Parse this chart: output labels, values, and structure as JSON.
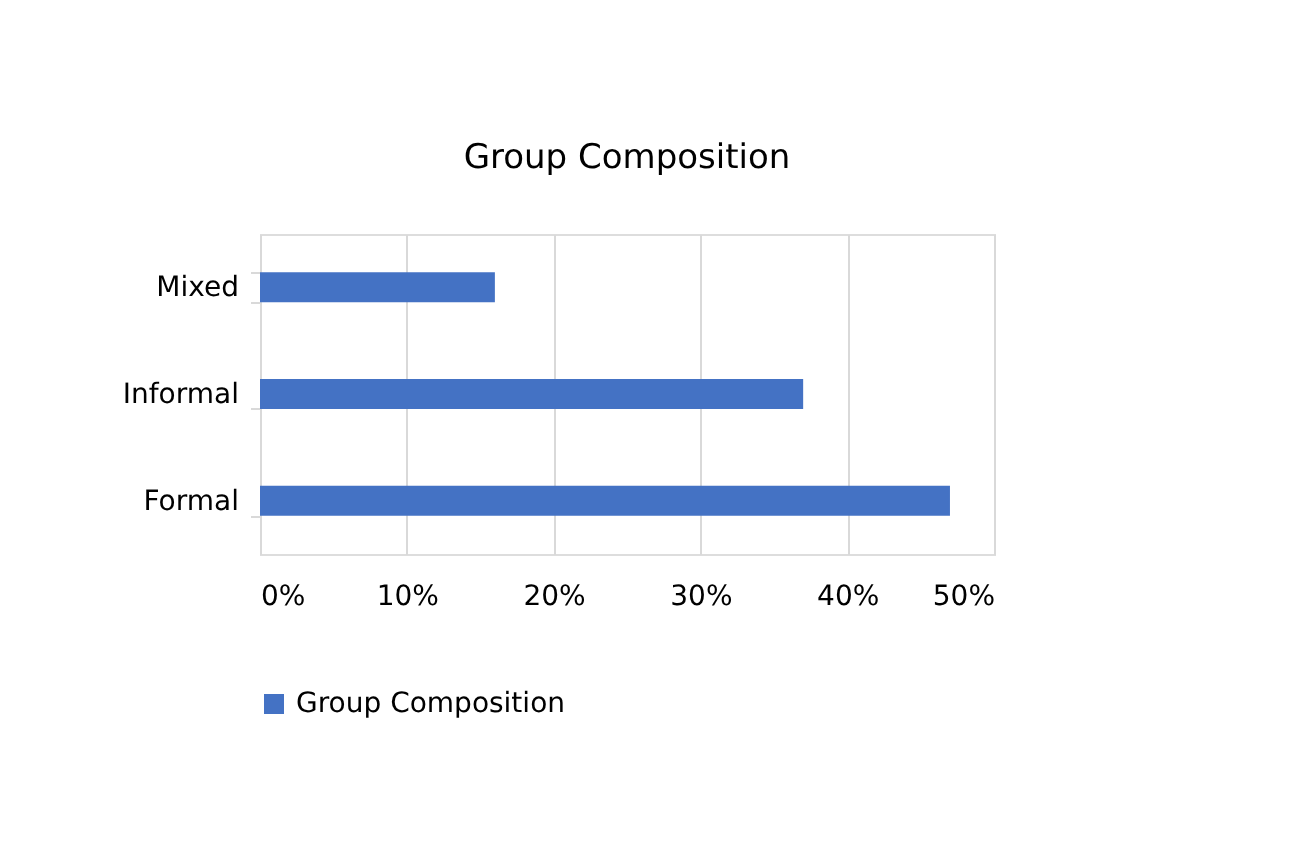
{
  "chart_data": {
    "type": "bar",
    "orientation": "horizontal",
    "title": "Group Composition",
    "categories": [
      "Mixed",
      "Informal",
      "Formal"
    ],
    "series": [
      {
        "name": "Group Composition",
        "color": "#4472c4",
        "values": [
          16,
          37,
          47
        ]
      }
    ],
    "xlim": [
      0,
      50
    ],
    "xticks": [
      {
        "value": 0,
        "label": "0%"
      },
      {
        "value": 10,
        "label": "10%"
      },
      {
        "value": 20,
        "label": "20%"
      },
      {
        "value": 30,
        "label": "30%"
      },
      {
        "value": 40,
        "label": "40%"
      },
      {
        "value": 50,
        "label": "50%"
      }
    ],
    "grid": "x",
    "legend": "bottom"
  }
}
